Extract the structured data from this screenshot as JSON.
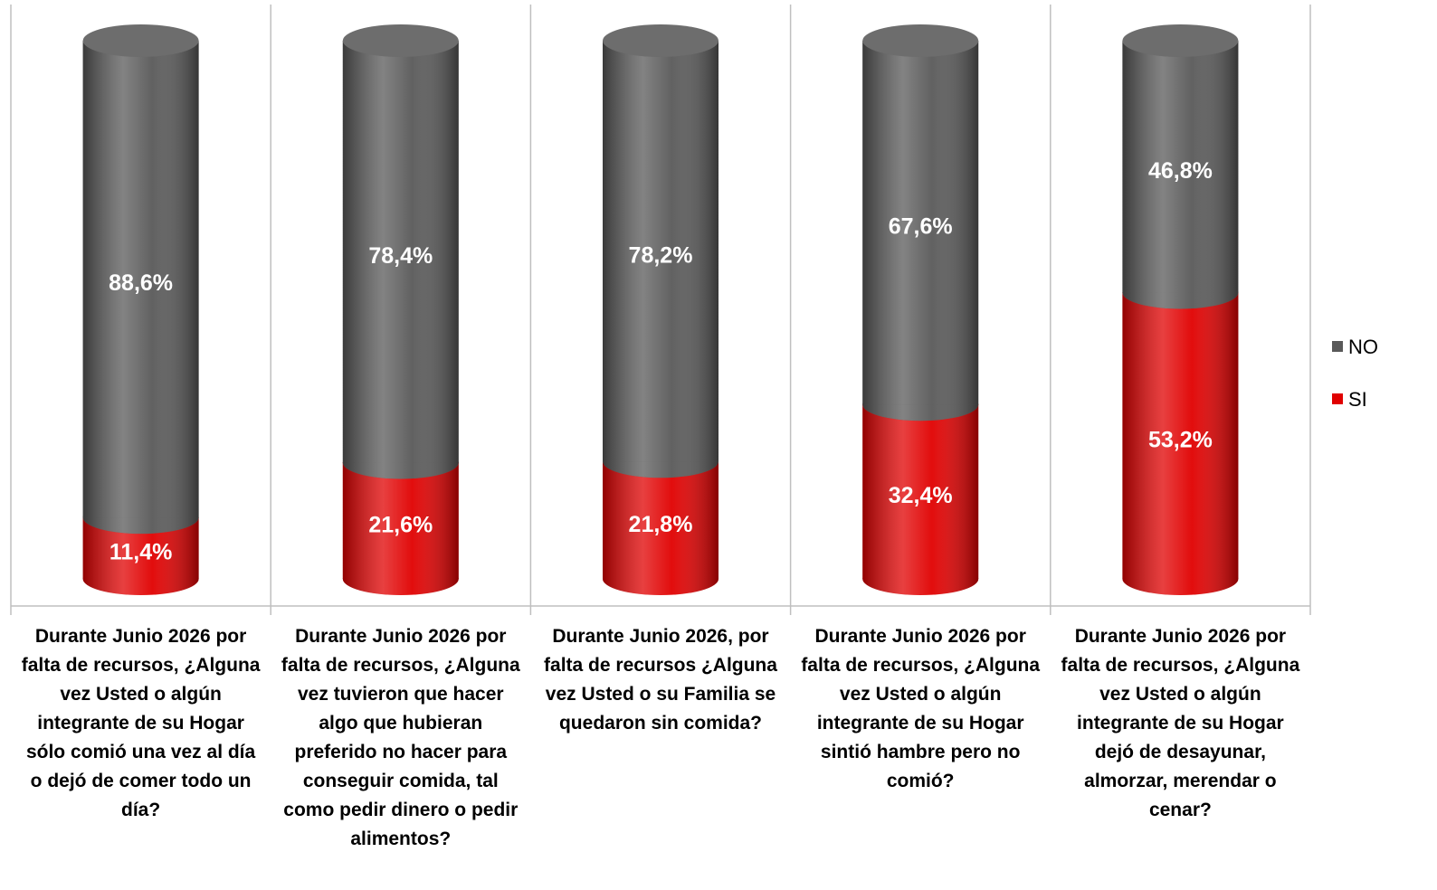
{
  "chart_data": {
    "type": "stacked-cylinder",
    "categories": [
      "Durante Junio 2026 por falta de recursos, ¿Alguna vez Usted o algún integrante de su Hogar sólo comió una vez al día o dejó de comer todo un día?",
      "Durante Junio 2026 por falta de recursos, ¿Alguna vez tuvieron que hacer algo que hubieran preferido no hacer para conseguir comida, tal como pedir dinero o pedir alimentos?",
      "Durante Junio 2026, por falta de recursos ¿Alguna vez Usted o su Familia se quedaron sin comida?",
      "Durante Junio 2026 por falta de recursos, ¿Alguna vez Usted o algún integrante de su Hogar sintió hambre pero no comió?",
      "Durante Junio 2026 por falta de recursos, ¿Alguna vez Usted o algún integrante de su Hogar dejó de desayunar, almorzar, merendar o cenar?"
    ],
    "series": [
      {
        "name": "SI",
        "color": "#e00000",
        "values": [
          11.4,
          21.6,
          21.8,
          32.4,
          53.2
        ],
        "value_labels": [
          "11,4%",
          "21,6%",
          "21,8%",
          "32,4%",
          "53,2%"
        ]
      },
      {
        "name": "NO",
        "color": "#595959",
        "values": [
          88.6,
          78.4,
          78.2,
          67.6,
          46.8
        ],
        "value_labels": [
          "88,6%",
          "78,4%",
          "78,2%",
          "67,6%",
          "46,8%"
        ]
      }
    ],
    "ylim": [
      0,
      100
    ],
    "legend": "right"
  }
}
